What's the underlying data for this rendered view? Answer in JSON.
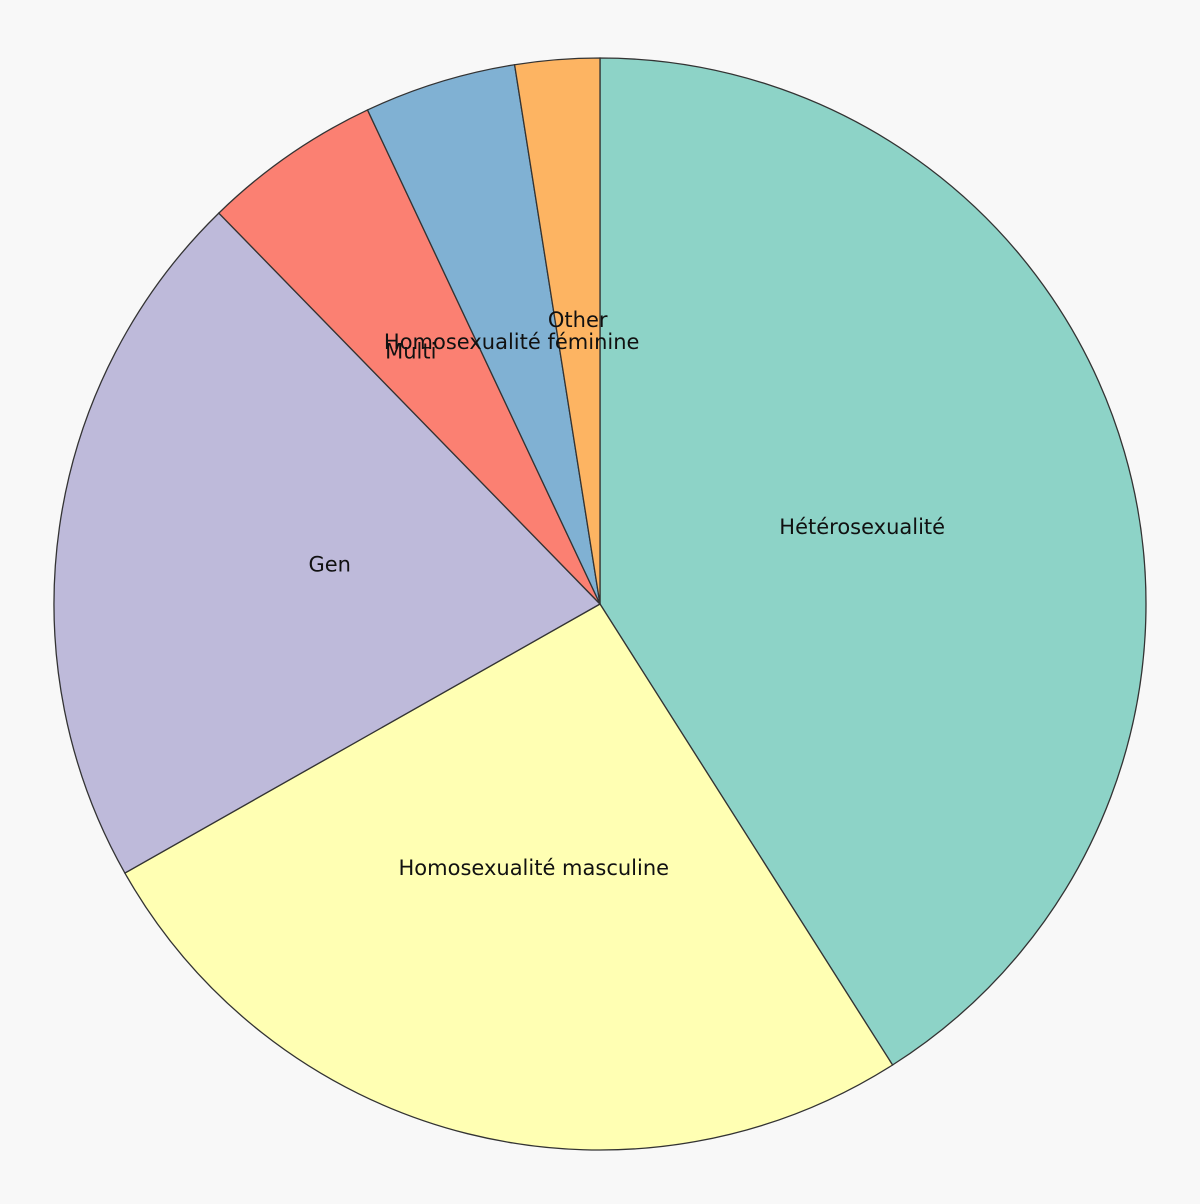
{
  "chart_data": {
    "type": "pie",
    "title": "",
    "start": "12 o'clock",
    "direction": "clockwise",
    "slices": [
      {
        "label": "Hétérosexualité",
        "value": 41.0,
        "color": "#8dd3c7"
      },
      {
        "label": "Homosexualité masculine",
        "value": 25.8,
        "color": "#ffffb3"
      },
      {
        "label": "Gen",
        "value": 20.9,
        "color": "#bebada"
      },
      {
        "label": "Multi",
        "value": 5.3,
        "color": "#fb8072"
      },
      {
        "label": "Homosexualité féminine",
        "value": 4.5,
        "color": "#80b1d3"
      },
      {
        "label": "Other",
        "value": 2.5,
        "color": "#fdb462"
      }
    ]
  }
}
